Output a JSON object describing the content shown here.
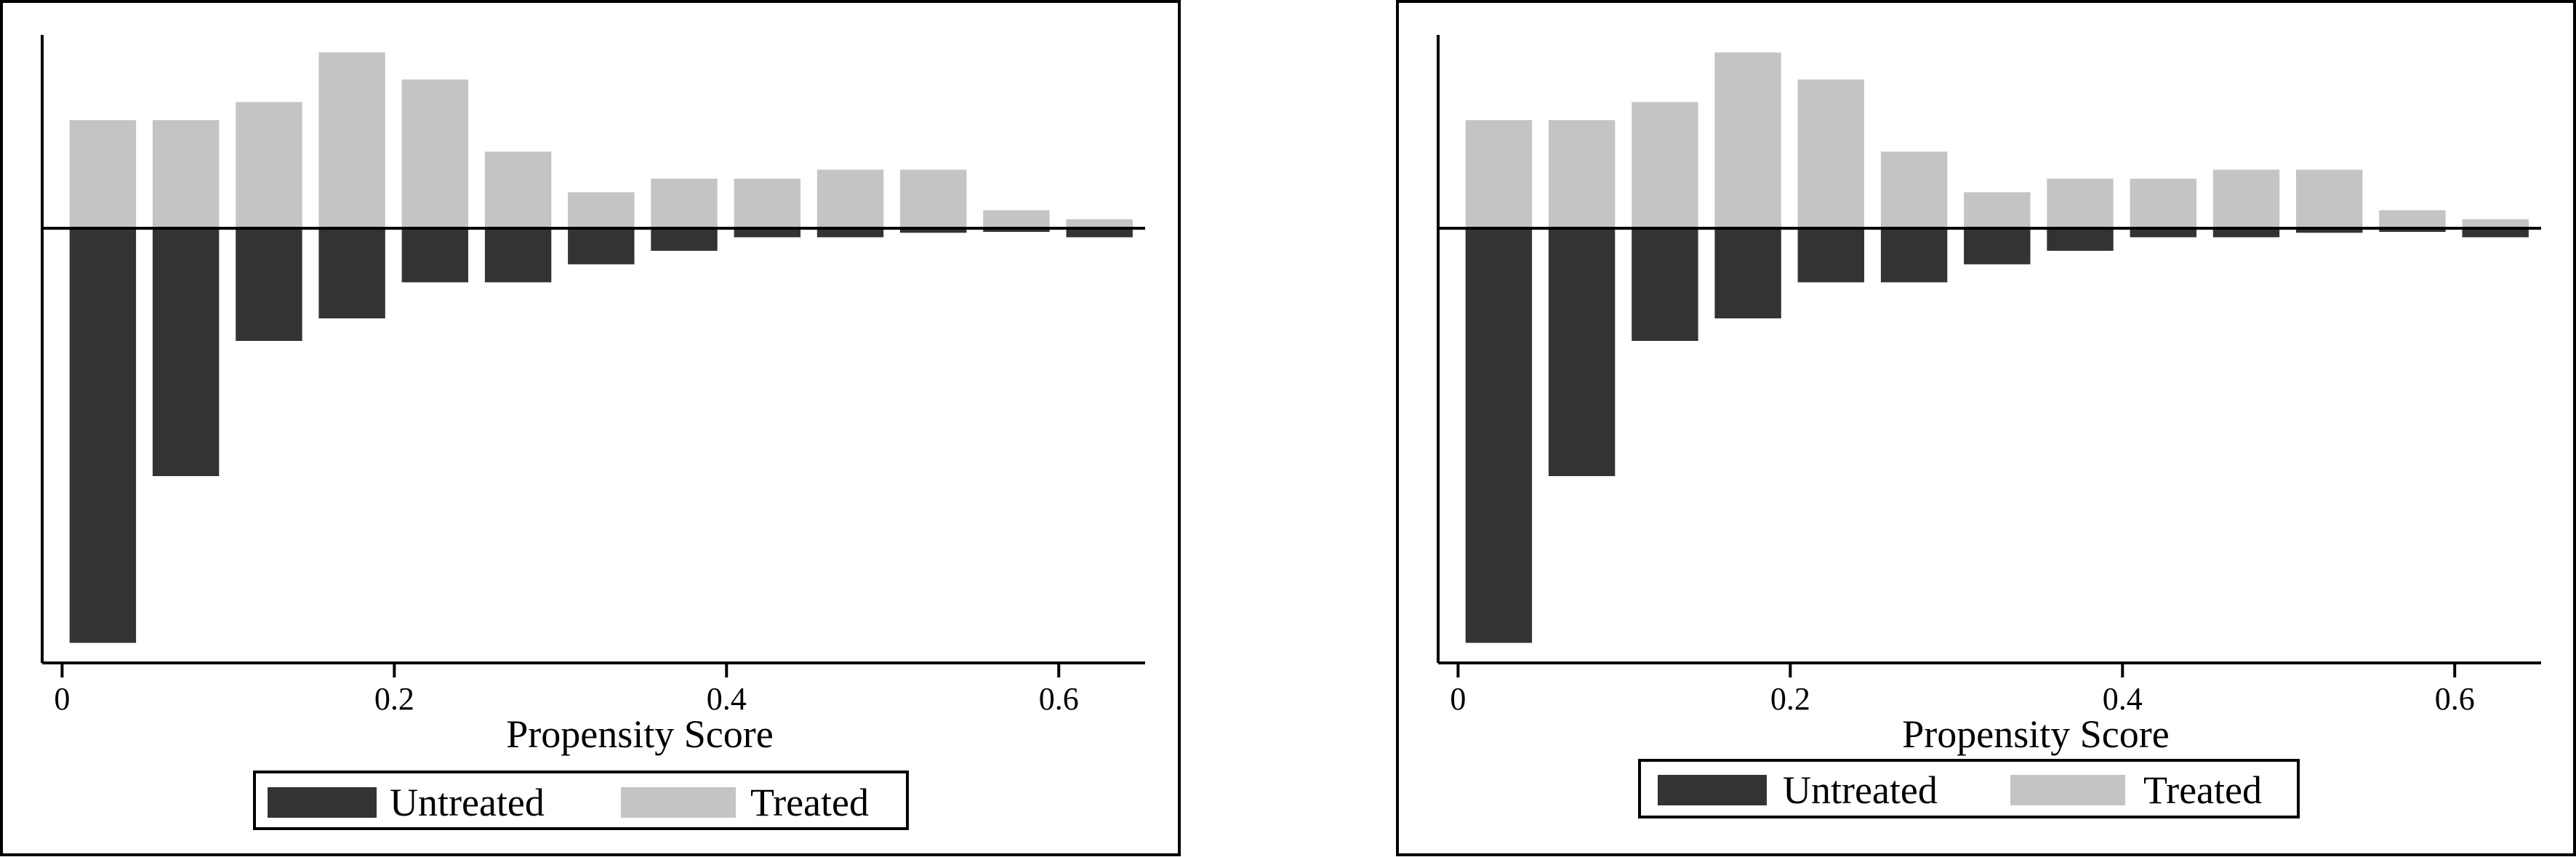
{
  "colors": {
    "untreated": "#333333",
    "treated": "#c4c4c4",
    "axis": "#000000"
  },
  "chart_data": [
    {
      "type": "bar",
      "xlabel": "Propensity Score",
      "xticks": [
        0,
        0.2,
        0.4,
        0.6
      ],
      "tick_labels": [
        "0",
        "0.2",
        "0.4",
        "0.6"
      ],
      "xlim": [
        -0.012,
        0.652
      ],
      "ylim": [
        -0.48,
        0.22
      ],
      "bin_centers": [
        0.0245,
        0.0745,
        0.1245,
        0.1745,
        0.2245,
        0.2745,
        0.3245,
        0.3745,
        0.4245,
        0.4745,
        0.5245,
        0.5745,
        0.6245
      ],
      "bin_width": 0.04,
      "series": [
        {
          "name": "Untreated",
          "values": [
            -0.46,
            -0.275,
            -0.125,
            -0.1,
            -0.06,
            -0.06,
            -0.04,
            -0.025,
            -0.01,
            -0.01,
            -0.005,
            -0.004,
            -0.01
          ]
        },
        {
          "name": "Treated",
          "values": [
            0.12,
            0.12,
            0.14,
            0.195,
            0.165,
            0.085,
            0.04,
            0.055,
            0.055,
            0.065,
            0.065,
            0.02,
            0.01
          ]
        }
      ],
      "legend": {
        "placement": "bottom-center",
        "items": [
          "Untreated",
          "Treated"
        ]
      }
    },
    {
      "type": "bar",
      "xlabel": "Propensity Score",
      "xticks": [
        0,
        0.2,
        0.4,
        0.6
      ],
      "tick_labels": [
        "0",
        "0.2",
        "0.4",
        "0.6"
      ],
      "xlim": [
        -0.012,
        0.652
      ],
      "ylim": [
        -0.48,
        0.22
      ],
      "bin_centers": [
        0.0245,
        0.0745,
        0.1245,
        0.1745,
        0.2245,
        0.2745,
        0.3245,
        0.3745,
        0.4245,
        0.4745,
        0.5245,
        0.5745,
        0.6245
      ],
      "bin_width": 0.04,
      "series": [
        {
          "name": "Untreated",
          "values": [
            -0.46,
            -0.275,
            -0.125,
            -0.1,
            -0.06,
            -0.06,
            -0.04,
            -0.025,
            -0.01,
            -0.01,
            -0.005,
            -0.004,
            -0.01
          ]
        },
        {
          "name": "Treated",
          "values": [
            0.12,
            0.12,
            0.14,
            0.195,
            0.165,
            0.085,
            0.04,
            0.055,
            0.055,
            0.065,
            0.065,
            0.02,
            0.01
          ]
        }
      ],
      "legend": {
        "placement": "bottom-center",
        "items": [
          "Untreated",
          "Treated"
        ]
      }
    }
  ]
}
